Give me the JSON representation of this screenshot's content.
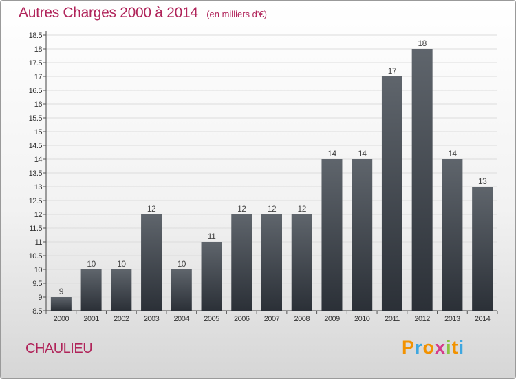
{
  "title": "Autres Charges 2000 à 2014",
  "unit_label": "(en milliers d'€)",
  "commune": "CHAULIEU",
  "logo": {
    "letters": [
      "P",
      "r",
      "o",
      "x",
      "i",
      "t",
      "i"
    ],
    "colors": [
      "#f29200",
      "#3ea7e0",
      "#f29200",
      "#d63b8a",
      "#8cc43f",
      "#f29200",
      "#3ea7e0"
    ]
  },
  "colors": {
    "title": "#b0245a",
    "bar_top": "#5f656c",
    "bar_bottom": "#2b3037"
  },
  "chart_data": {
    "type": "bar",
    "categories": [
      "2000",
      "2001",
      "2002",
      "2003",
      "2004",
      "2005",
      "2006",
      "2007",
      "2008",
      "2009",
      "2010",
      "2011",
      "2012",
      "2013",
      "2014"
    ],
    "values": [
      9,
      10,
      10,
      12,
      10,
      11,
      12,
      12,
      12,
      14,
      14,
      17,
      18,
      14,
      13
    ],
    "data_labels": [
      "9",
      "10",
      "10",
      "12",
      "10",
      "11",
      "12",
      "12",
      "12",
      "14",
      "14",
      "17",
      "18",
      "14",
      "13"
    ],
    "y_ticks": [
      8.5,
      9,
      9.5,
      10,
      10.5,
      11,
      11.5,
      12,
      12.5,
      13,
      13.5,
      14,
      14.5,
      15,
      15.5,
      16,
      16.5,
      17,
      17.5,
      18,
      18.5
    ],
    "y_tick_labels": [
      "8.5",
      "9",
      "9.5",
      "10",
      "10.5",
      "11",
      "11.5",
      "12",
      "12.5",
      "13",
      "13.5",
      "14",
      "14.5",
      "15",
      "15.5",
      "16",
      "16.5",
      "17",
      "17.5",
      "18",
      "18.5"
    ],
    "ylim": [
      8.5,
      18.5
    ],
    "grid": true
  }
}
